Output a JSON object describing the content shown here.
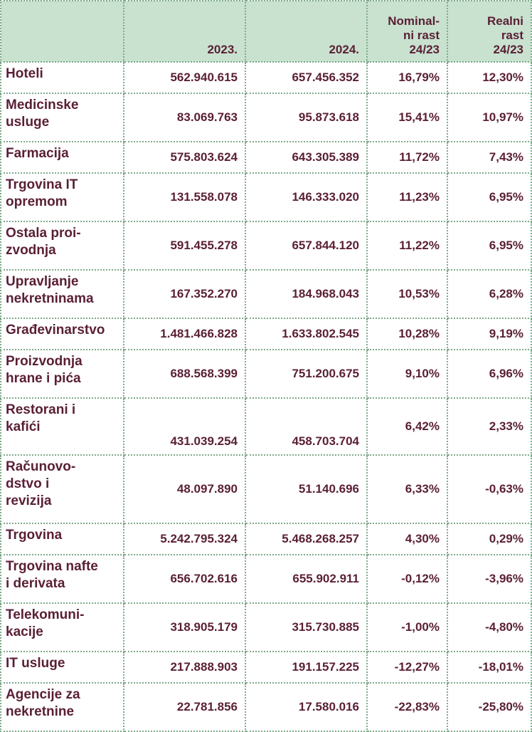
{
  "header": {
    "col_2023": "2023.",
    "col_2024": "2024.",
    "nominal": "Nominal-ni rast 24/23",
    "real": "Realni rast 24/23"
  },
  "rows": [
    {
      "label": "Hoteli",
      "v2023": "562.940.615",
      "v2024": "657.456.352",
      "nominal": "16,79%",
      "real": "12,30%"
    },
    {
      "label": "Medicinske usluge",
      "v2023": "83.069.763",
      "v2024": "95.873.618",
      "nominal": "15,41%",
      "real": "10,97%"
    },
    {
      "label": "Farmacija",
      "v2023": "575.803.624",
      "v2024": "643.305.389",
      "nominal": "11,72%",
      "real": "7,43%"
    },
    {
      "label": "Trgovina IT opremom",
      "v2023": "131.558.078",
      "v2024": "146.333.020",
      "nominal": "11,23%",
      "real": "6,95%"
    },
    {
      "label": "Ostala proi-zvodnja",
      "v2023": "591.455.278",
      "v2024": "657.844.120",
      "nominal": "11,22%",
      "real": "6,95%"
    },
    {
      "label": "Upravljanje nekretninama",
      "v2023": "167.352.270",
      "v2024": "184.968.043",
      "nominal": "10,53%",
      "real": "6,28%"
    },
    {
      "label": "Građevinarstvo",
      "v2023": "1.481.466.828",
      "v2024": "1.633.802.545",
      "nominal": "10,28%",
      "real": "9,19%"
    },
    {
      "label": "Proizvodnja hrane i pića",
      "v2023": "688.568.399",
      "v2024": "751.200.675",
      "nominal": "9,10%",
      "real": "6,96%"
    },
    {
      "label": "Restorani i kafići",
      "v2023": "431.039.254",
      "v2024": "458.703.704",
      "nominal": "6,42%",
      "real": "2,33%"
    },
    {
      "label": "Računovo-dstvo i revizija",
      "v2023": "48.097.890",
      "v2024": "51.140.696",
      "nominal": "6,33%",
      "real": "-0,63%"
    },
    {
      "label": "Trgovina",
      "v2023": "5.242.795.324",
      "v2024": "5.468.268.257",
      "nominal": "4,30%",
      "real": "0,29%"
    },
    {
      "label": "Trgovina nafte i derivata",
      "v2023": "656.702.616",
      "v2024": "655.902.911",
      "nominal": "-0,12%",
      "real": "-3,96%"
    },
    {
      "label": "Telekomuni-kacije",
      "v2023": "318.905.179",
      "v2024": "315.730.885",
      "nominal": "-1,00%",
      "real": "-4,80%"
    },
    {
      "label": "IT usluge",
      "v2023": "217.888.903",
      "v2024": "191.157.225",
      "nominal": "-12,27%",
      "real": "-18,01%"
    },
    {
      "label": "Agencije za nekretnine",
      "v2023": "22.781.856",
      "v2024": "17.580.016",
      "nominal": "-22,83%",
      "real": "-25,80%"
    }
  ]
}
